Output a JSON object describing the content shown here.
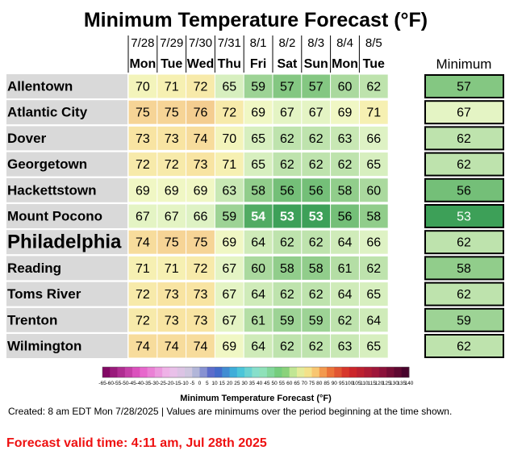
{
  "chart_data": {
    "type": "heatmap",
    "title": "Minimum Temperature Forecast (°F)",
    "columns": [
      {
        "date": "7/28",
        "day": "Mon"
      },
      {
        "date": "7/29",
        "day": "Tue"
      },
      {
        "date": "7/30",
        "day": "Wed"
      },
      {
        "date": "7/31",
        "day": "Thu"
      },
      {
        "date": "8/1",
        "day": "Fri"
      },
      {
        "date": "8/2",
        "day": "Sat"
      },
      {
        "date": "8/3",
        "day": "Sun"
      },
      {
        "date": "8/4",
        "day": "Mon"
      },
      {
        "date": "8/5",
        "day": "Tue"
      }
    ],
    "summary_header": "Minimum",
    "rows": [
      {
        "name": "Allentown",
        "values": [
          70,
          71,
          72,
          65,
          59,
          57,
          57,
          60,
          62
        ],
        "min": 57
      },
      {
        "name": "Atlantic City",
        "values": [
          75,
          75,
          76,
          72,
          69,
          67,
          67,
          69,
          71
        ],
        "min": 67
      },
      {
        "name": "Dover",
        "values": [
          73,
          73,
          74,
          70,
          65,
          62,
          62,
          63,
          66
        ],
        "min": 62
      },
      {
        "name": "Georgetown",
        "values": [
          72,
          72,
          73,
          71,
          65,
          62,
          62,
          62,
          65
        ],
        "min": 62
      },
      {
        "name": "Hackettstown",
        "values": [
          69,
          69,
          69,
          63,
          58,
          56,
          56,
          58,
          60
        ],
        "min": 56
      },
      {
        "name": "Mount Pocono",
        "values": [
          67,
          67,
          66,
          59,
          54,
          53,
          53,
          56,
          58
        ],
        "min": 53
      },
      {
        "name": "Philadelphia",
        "values": [
          74,
          75,
          75,
          69,
          64,
          62,
          62,
          64,
          66
        ],
        "min": 62,
        "emphasized": true
      },
      {
        "name": "Reading",
        "values": [
          71,
          71,
          72,
          67,
          60,
          58,
          58,
          61,
          62
        ],
        "min": 58
      },
      {
        "name": "Toms River",
        "values": [
          72,
          73,
          73,
          67,
          64,
          62,
          62,
          64,
          65
        ],
        "min": 62
      },
      {
        "name": "Trenton",
        "values": [
          72,
          73,
          73,
          67,
          61,
          59,
          59,
          62,
          64
        ],
        "min": 59
      },
      {
        "name": "Wilmington",
        "values": [
          74,
          74,
          74,
          69,
          64,
          62,
          62,
          63,
          65
        ],
        "min": 62
      }
    ],
    "colorbar": {
      "label": "Minimum Temperature Forecast (°F)",
      "range": [
        -65,
        140
      ],
      "step": 5,
      "ticks": [
        -65,
        -60,
        -55,
        -50,
        -45,
        -40,
        -35,
        -30,
        -25,
        -20,
        -15,
        -10,
        -5,
        0,
        5,
        10,
        15,
        20,
        25,
        30,
        35,
        40,
        45,
        50,
        55,
        60,
        65,
        70,
        75,
        80,
        85,
        90,
        95,
        100,
        105,
        110,
        115,
        120,
        125,
        130,
        135,
        140
      ]
    }
  },
  "footer": {
    "created": "Created: 8 am EDT Mon 7/28/2025  |  Values are minimums over the period beginning at the time shown.",
    "valid_time": "Forecast valid time: 4:11 am, Jul 28th 2025"
  }
}
